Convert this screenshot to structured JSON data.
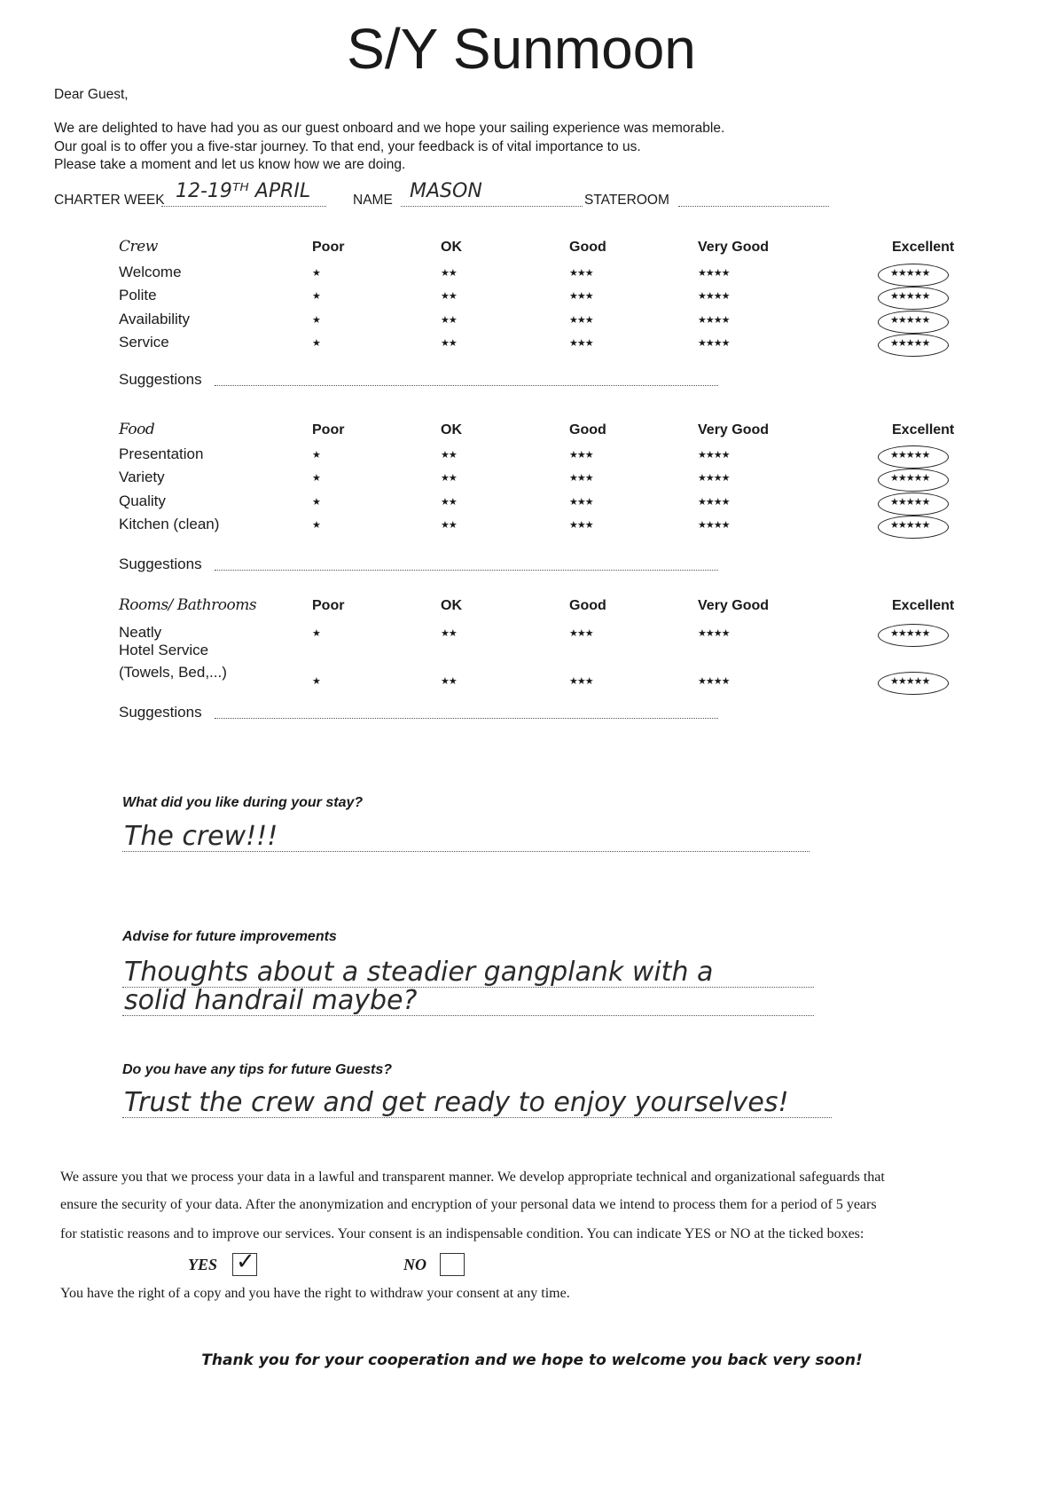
{
  "title": "S/Y Sunmoon",
  "greeting": "Dear Guest,",
  "intro": [
    "We are delighted to have had you as our guest onboard and we hope your sailing experience was memorable.",
    "Our goal is to offer you a five-star journey. To that end, your feedback is of vital importance to us.",
    "Please take a moment and let us know how we are doing."
  ],
  "fields": {
    "charter_week_label": "CHARTER WEEK",
    "charter_week_value": "12-19ᵀᴴ APRIL",
    "name_label": "NAME",
    "name_value": "MASON",
    "stateroom_label": "STATEROOM",
    "stateroom_value": ""
  },
  "columns": [
    "Poor",
    "OK",
    "Good",
    "Very Good",
    "Excellent"
  ],
  "stars": [
    "★",
    "★★",
    "★★★",
    "★★★★",
    "★★★★★"
  ],
  "suggestions_label": "Suggestions",
  "sections": [
    {
      "title": "Crew",
      "items": [
        "Welcome",
        "Polite",
        "Availability",
        "Service"
      ],
      "ratings": [
        5,
        5,
        5,
        5
      ]
    },
    {
      "title": "Food",
      "items": [
        "Presentation",
        "Variety",
        "Quality",
        "Kitchen (clean)"
      ],
      "ratings": [
        5,
        5,
        5,
        5
      ]
    },
    {
      "title": "Rooms/ Bathrooms",
      "items": [
        "Neatly",
        "Hotel Service",
        "(Towels, Bed,...)"
      ],
      "ratings": [
        5,
        5
      ]
    }
  ],
  "questions": [
    {
      "label": "What did you like during your stay?",
      "answer": [
        "The crew!!!"
      ]
    },
    {
      "label": "Advise for future improvements",
      "answer": [
        "Thoughts about a steadier gangplank with a",
        "solid handrail maybe?"
      ]
    },
    {
      "label": "Do you have any tips for future Guests?",
      "answer": [
        "Trust the crew and get ready to enjoy yourselves!"
      ]
    }
  ],
  "consent": {
    "text": [
      "We assure you that we process your data in a lawful and transparent manner. We develop appropriate technical and organizational safeguards that",
      "ensure the security of your data. After the anonymization and encryption of your personal data we intend to process them for a period of 5 years",
      "for statistic reasons and to improve our services. Your consent is an indispensable condition. You can indicate YES or NO at the ticked boxes:"
    ],
    "yes_label": "YES",
    "no_label": "NO",
    "yes_checked": true,
    "no_checked": false,
    "check_mark": "✓",
    "rights": "You have the right of a copy and you have the right to withdraw your consent at any time."
  },
  "closing": "Thank you for your cooperation and we hope to welcome you back very soon!"
}
